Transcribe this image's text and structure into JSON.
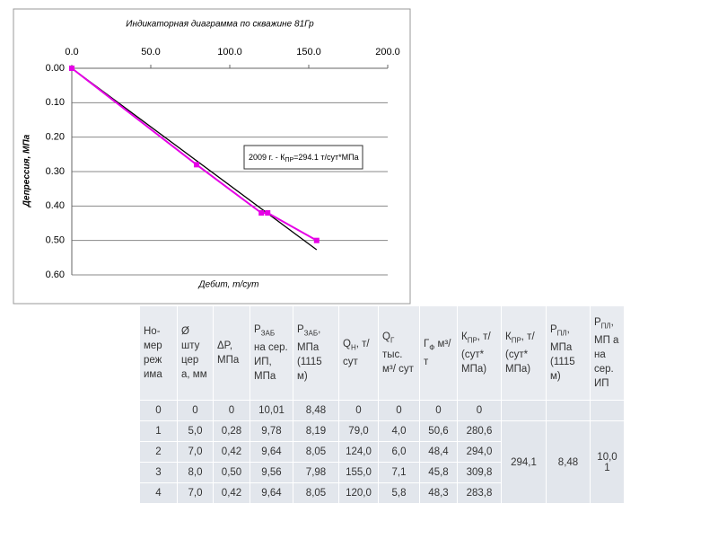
{
  "chart_data": {
    "type": "line",
    "title": "Индикаторная диаграмма по скважине 81Гр",
    "x_label": "Дебит, т/сут",
    "y_label": "Депрессия, МПа",
    "x_axis_position": "top",
    "y_inverted": true,
    "grid": true,
    "xlim": [
      0,
      200
    ],
    "ylim": [
      0,
      0.6
    ],
    "xticks": [
      {
        "value": 0,
        "label": "0.0"
      },
      {
        "value": 50,
        "label": "50.0"
      },
      {
        "value": 100,
        "label": "100.0"
      },
      {
        "value": 150,
        "label": "150.0"
      },
      {
        "value": 200,
        "label": "200.0"
      }
    ],
    "yticks": [
      {
        "value": 0,
        "label": "0.00"
      },
      {
        "value": 0.1,
        "label": "0.10"
      },
      {
        "value": 0.2,
        "label": "0.20"
      },
      {
        "value": 0.3,
        "label": "0.30"
      },
      {
        "value": 0.4,
        "label": "0.40"
      },
      {
        "value": 0.5,
        "label": "0.50"
      },
      {
        "value": 0.6,
        "label": "0.60"
      }
    ],
    "series": [
      {
        "color": "#e600e6",
        "x": [
          0,
          79,
          120,
          124,
          155
        ],
        "values": [
          0,
          0.28,
          0.42,
          0.42,
          0.5
        ]
      }
    ],
    "trendline": {
      "color": "#000000",
      "x": [
        0,
        155
      ],
      "values": [
        0,
        0.527
      ]
    },
    "annotation": {
      "prefix": "2009 г. - К",
      "sub": "ПР",
      "suffix": "=294.1 т/сут*МПа"
    }
  },
  "table": {
    "header": [
      {
        "main": "Но-мер реж има"
      },
      {
        "main": "Ø шту цер а, мм"
      },
      {
        "main": "ΔP, МПа"
      },
      {
        "main": "P",
        "sub": "ЗАБ",
        "rest": " на сер. ИП, МПа"
      },
      {
        "main": "P",
        "sub": "ЗАБ",
        "rest": ", МПа (1115 м)"
      },
      {
        "main": "Q",
        "sub": "Н",
        "rest": ", т/ сут"
      },
      {
        "main": "Q",
        "sub": "Г",
        "rest": " тыс. м³/ сут"
      },
      {
        "main": "Г",
        "sub": "Ф",
        "rest": " м³/т"
      },
      {
        "main": "К",
        "sub": "ПР",
        "rest": ", т/ (сут* МПа)"
      },
      {
        "main": "К",
        "sub": "ПР",
        "rest": ", т/ (сут* МПа)"
      },
      {
        "main": "P",
        "sub": "ПЛ",
        "rest": ", МПа (1115 м)"
      },
      {
        "main": "P",
        "sub": "ПЛ",
        "rest": ", МП а на сер. ИП"
      }
    ],
    "rows": [
      [
        "0",
        "0",
        "0",
        "10,01",
        "8,48",
        "0",
        "0",
        "0",
        "0"
      ],
      [
        "1",
        "5,0",
        "0,28",
        "9,78",
        "8,19",
        "79,0",
        "4,0",
        "50,6",
        "280,6"
      ],
      [
        "2",
        "7,0",
        "0,42",
        "9,64",
        "8,05",
        "124,0",
        "6,0",
        "48,4",
        "294,0"
      ],
      [
        "3",
        "8,0",
        "0,50",
        "9,56",
        "7,98",
        "155,0",
        "7,1",
        "45,8",
        "309,8"
      ],
      [
        "4",
        "7,0",
        "0,42",
        "9,64",
        "8,05",
        "120,0",
        "5,8",
        "48,3",
        "283,8"
      ]
    ],
    "merged": [
      "294,1",
      "8,48",
      "10,0 1"
    ]
  }
}
